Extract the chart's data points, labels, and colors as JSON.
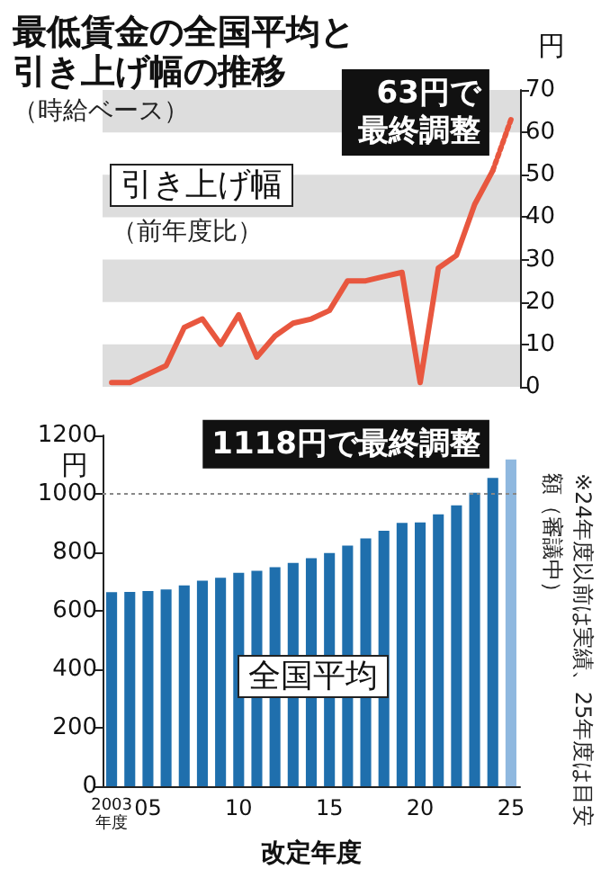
{
  "chart_data": [
    {
      "type": "line",
      "title": "最低賃金の全国平均と引き上げ幅の推移",
      "subtitle": "（時給ベース）",
      "ylabel": "円",
      "categories": [
        null,
        null,
        null,
        null,
        null,
        null,
        null,
        null,
        null,
        null,
        null,
        null,
        null,
        null,
        null,
        null,
        null,
        null,
        null,
        null,
        null,
        null,
        null
      ],
      "series": [
        {
          "name": "引き上げ幅",
          "color": "#e8573f",
          "values": [
            1,
            1,
            3,
            5,
            14,
            16,
            10,
            17,
            7,
            12,
            15,
            16,
            18,
            25,
            25,
            26,
            27,
            1,
            28,
            31,
            43,
            51,
            null
          ]
        },
        {
          "color": "#e8573f",
          "line_style": "dotted",
          "values": [
            null,
            null,
            null,
            null,
            null,
            null,
            null,
            null,
            null,
            null,
            null,
            null,
            null,
            null,
            null,
            null,
            null,
            null,
            null,
            null,
            null,
            51,
            63
          ]
        }
      ],
      "ylim": [
        0,
        70
      ],
      "yticks": [
        0,
        10,
        20,
        30,
        40,
        50,
        60,
        70
      ],
      "bands": [
        {
          "axis": "y",
          "from": 0,
          "to": 10,
          "color": "#dddddd"
        },
        {
          "axis": "y",
          "from": 20,
          "to": 30,
          "color": "#dddddd"
        },
        {
          "axis": "y",
          "from": 40,
          "to": 50,
          "color": "#dddddd"
        },
        {
          "axis": "y",
          "from": 60,
          "to": 70,
          "color": "#dddddd"
        }
      ],
      "annotations": [
        "（前年度比）",
        "63円で最終調整"
      ],
      "tick_labels": "y",
      "grid": false,
      "legend": false,
      "marker": "none",
      "line_style": "solid"
    },
    {
      "type": "bar",
      "ylabel": "円",
      "xlabel": "改定年度",
      "categories": [
        "2003年度",
        null,
        "05",
        null,
        null,
        null,
        null,
        "10",
        null,
        null,
        null,
        null,
        "15",
        null,
        null,
        null,
        null,
        "20",
        null,
        null,
        null,
        null,
        "25"
      ],
      "series": [
        {
          "name": "全国平均",
          "values": [
            664,
            665,
            668,
            673,
            687,
            703,
            713,
            730,
            737,
            749,
            764,
            780,
            798,
            823,
            848,
            874,
            901,
            902,
            930,
            961,
            1004,
            1055,
            1118
          ],
          "colors": [
            "#1f6fad",
            "#1f6fad",
            "#1f6fad",
            "#1f6fad",
            "#1f6fad",
            "#1f6fad",
            "#1f6fad",
            "#1f6fad",
            "#1f6fad",
            "#1f6fad",
            "#1f6fad",
            "#1f6fad",
            "#1f6fad",
            "#1f6fad",
            "#1f6fad",
            "#1f6fad",
            "#1f6fad",
            "#1f6fad",
            "#1f6fad",
            "#1f6fad",
            "#1f6fad",
            "#1f6fad",
            "#8fb8df"
          ]
        }
      ],
      "ylim": [
        0,
        1200
      ],
      "yticks": [
        0,
        200,
        400,
        600,
        800,
        1000,
        1200
      ],
      "ref_lines": [
        {
          "axis": "y",
          "value": 1000,
          "color": "#888888",
          "line_style": "dotted"
        }
      ],
      "annotations": [
        {
          "text": "1118円で最終調整",
          "x": "25",
          "y": 1118
        },
        "※24年度以前は実績、25年度は目安額（審議中）"
      ],
      "grid": false,
      "legend": false
    }
  ]
}
